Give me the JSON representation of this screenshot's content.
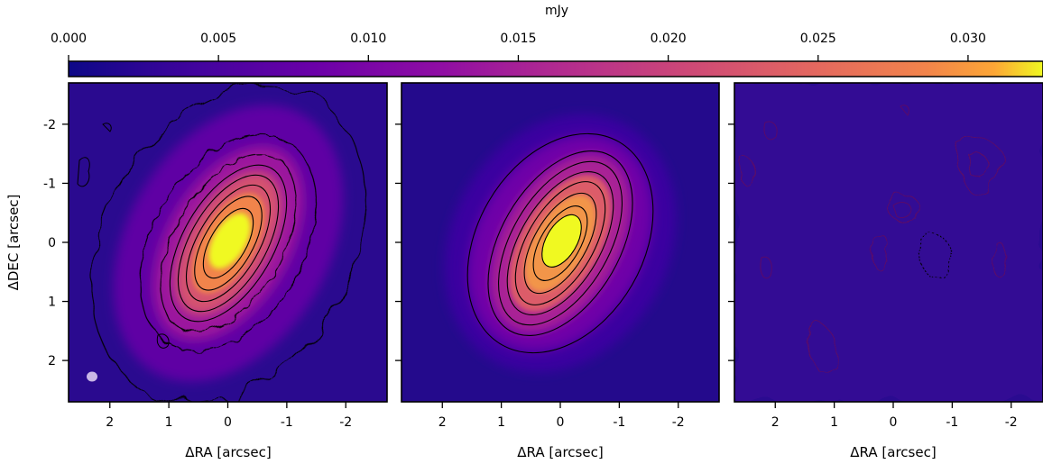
{
  "colorbar": {
    "label": "mJy",
    "colormap": "plasma",
    "range": [
      0.0,
      0.0325
    ],
    "ticks": [
      "0.000",
      "0.005",
      "0.010",
      "0.015",
      "0.020",
      "0.025",
      "0.030"
    ],
    "tick_values": [
      0.0,
      0.005,
      0.01,
      0.015,
      0.02,
      0.025,
      0.03
    ]
  },
  "axes": {
    "xlabel": "ΔRA [arcsec]",
    "ylabel": "ΔDEC [arcsec]",
    "x_ticks": [
      "2",
      "1",
      "0",
      "-1",
      "-2"
    ],
    "x_tick_values": [
      2,
      1,
      0,
      -1,
      -2
    ],
    "y_ticks": [
      "-2",
      "-1",
      "0",
      "1",
      "2"
    ],
    "y_tick_values": [
      -2,
      -1,
      0,
      1,
      2
    ],
    "xlim": [
      2.7,
      -2.7
    ],
    "ylim": [
      -2.7,
      2.7
    ]
  },
  "chart_data": [
    {
      "type": "heatmap",
      "panel": "observed",
      "xlabel": "ΔRA [arcsec]",
      "ylabel": "ΔDEC [arcsec]",
      "xlim": [
        2.7,
        -2.7
      ],
      "ylim": [
        -2.7,
        2.7
      ],
      "colormap": "plasma",
      "source": {
        "x": 0.0,
        "y": 0.0,
        "peak_mJy": 0.0325,
        "position_angle_deg": 30
      },
      "contours": true,
      "beam": true
    },
    {
      "type": "heatmap",
      "panel": "model",
      "xlabel": "ΔRA [arcsec]",
      "xlim": [
        2.7,
        -2.7
      ],
      "ylim": [
        -2.7,
        2.7
      ],
      "colormap": "plasma",
      "source": {
        "x": 0.0,
        "y": 0.0,
        "peak_mJy": 0.0325,
        "position_angle_deg": 30
      },
      "contours": true
    },
    {
      "type": "heatmap",
      "panel": "residual",
      "xlabel": "ΔRA [arcsec]",
      "xlim": [
        2.7,
        -2.7
      ],
      "ylim": [
        -2.7,
        2.7
      ],
      "colormap": "plasma",
      "contours": true
    }
  ]
}
